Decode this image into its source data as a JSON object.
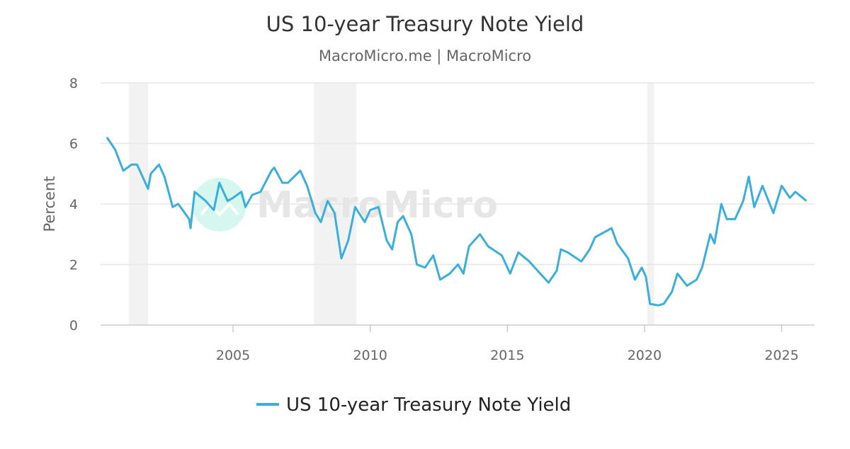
{
  "chart_data": {
    "type": "line",
    "title": "US 10-year Treasury Note Yield",
    "subtitle": "MacroMicro.me | MacroMicro",
    "ylabel": "Percent",
    "xlabel": "",
    "ylim": [
      0,
      8
    ],
    "xlim": [
      2000.17,
      2026.2
    ],
    "y_ticks": [
      "0",
      "2",
      "4",
      "6",
      "8"
    ],
    "x_ticks": [
      "2005",
      "2010",
      "2015",
      "2020",
      "2025"
    ],
    "grid": "horizontal",
    "legend_position": "bottom",
    "watermark": "MacroMicro",
    "recessions": [
      [
        2001.2,
        2001.9
      ],
      [
        2007.95,
        2009.5
      ],
      [
        2020.1,
        2020.35
      ]
    ],
    "colors": {
      "line": "#3aaedc",
      "recession": "#f2f2f2",
      "grid": "#e6e6e6",
      "watermark_logo": "#d6f7f0",
      "watermark_text": "#e6e6e6"
    },
    "series": [
      {
        "name": "US 10-year Treasury Note Yield",
        "x": [
          2000.4,
          2000.7,
          2001.0,
          2001.3,
          2001.5,
          2001.9,
          2002.0,
          2002.3,
          2002.5,
          2002.8,
          2003.0,
          2003.4,
          2003.45,
          2003.6,
          2004.0,
          2004.3,
          2004.5,
          2004.8,
          2005.0,
          2005.3,
          2005.45,
          2005.7,
          2006.0,
          2006.4,
          2006.5,
          2006.8,
          2007.0,
          2007.45,
          2007.7,
          2008.0,
          2008.2,
          2008.45,
          2008.7,
          2008.95,
          2009.2,
          2009.45,
          2009.8,
          2010.0,
          2010.3,
          2010.6,
          2010.8,
          2011.0,
          2011.2,
          2011.5,
          2011.7,
          2012.0,
          2012.3,
          2012.55,
          2012.9,
          2013.2,
          2013.4,
          2013.6,
          2014.0,
          2014.3,
          2014.8,
          2015.1,
          2015.4,
          2015.8,
          2016.1,
          2016.5,
          2016.8,
          2016.95,
          2017.2,
          2017.7,
          2018.0,
          2018.2,
          2018.8,
          2019.0,
          2019.4,
          2019.65,
          2019.9,
          2020.05,
          2020.2,
          2020.5,
          2020.7,
          2021.0,
          2021.2,
          2021.55,
          2021.9,
          2022.1,
          2022.4,
          2022.55,
          2022.8,
          2023.0,
          2023.3,
          2023.6,
          2023.8,
          2024.0,
          2024.3,
          2024.7,
          2025.0,
          2025.3,
          2025.5,
          2025.9
        ],
        "values": [
          6.2,
          5.8,
          5.1,
          5.3,
          5.3,
          4.5,
          5.0,
          5.3,
          4.9,
          3.9,
          4.0,
          3.5,
          3.2,
          4.4,
          4.1,
          3.8,
          4.7,
          4.1,
          4.2,
          4.4,
          3.9,
          4.3,
          4.4,
          5.1,
          5.2,
          4.7,
          4.7,
          5.1,
          4.6,
          3.7,
          3.4,
          4.1,
          3.7,
          2.2,
          2.8,
          3.9,
          3.4,
          3.8,
          3.9,
          2.8,
          2.5,
          3.4,
          3.6,
          3.0,
          2.0,
          1.9,
          2.3,
          1.5,
          1.7,
          2.0,
          1.7,
          2.6,
          3.0,
          2.6,
          2.3,
          1.7,
          2.4,
          2.1,
          1.8,
          1.4,
          1.8,
          2.5,
          2.4,
          2.1,
          2.5,
          2.9,
          3.2,
          2.7,
          2.2,
          1.5,
          1.9,
          1.6,
          0.7,
          0.65,
          0.7,
          1.1,
          1.7,
          1.3,
          1.5,
          1.9,
          3.0,
          2.7,
          4.0,
          3.5,
          3.5,
          4.1,
          4.9,
          3.9,
          4.6,
          3.7,
          4.6,
          4.2,
          4.4,
          4.1
        ]
      }
    ]
  }
}
